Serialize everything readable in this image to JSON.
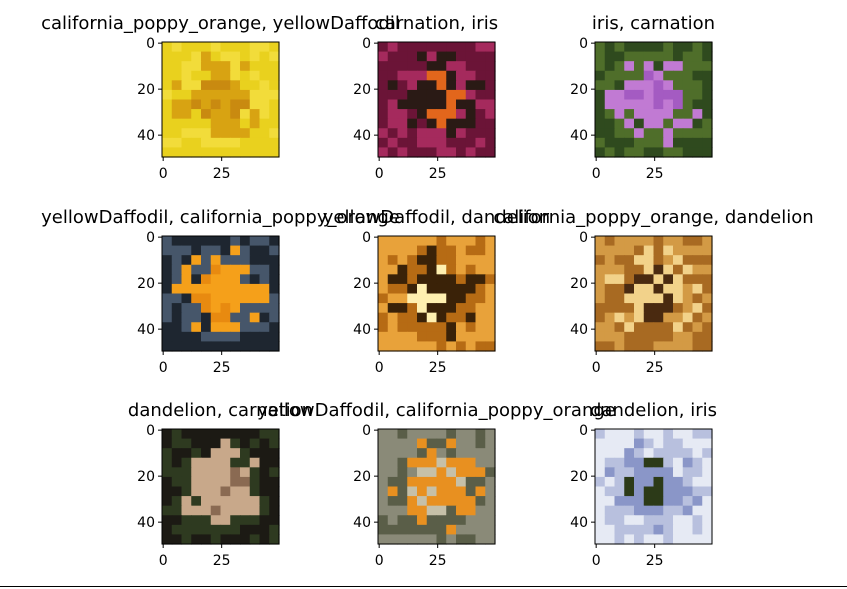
{
  "chart_data": [
    {
      "type": "image",
      "title": "california_poppy_orange, yellowDaffodil",
      "xticks": [
        0,
        25
      ],
      "yticks": [
        0,
        20,
        40
      ],
      "xlim": [
        -0.5,
        49.5
      ],
      "ylim": [
        49.5,
        -0.5
      ],
      "image_content": "yellow daffodil flower close-up",
      "palette": [
        "#e9d11e",
        "#f2dc3a",
        "#d8a312",
        "#c98a10"
      ]
    },
    {
      "type": "image",
      "title": "carnation, iris",
      "xticks": [
        0,
        25
      ],
      "yticks": [
        0,
        20,
        40
      ],
      "xlim": [
        -0.5,
        49.5
      ],
      "ylim": [
        49.5,
        -0.5
      ],
      "image_content": "dark magenta iris with orange beard",
      "palette": [
        "#6b1437",
        "#a52a5d",
        "#2a1a15",
        "#e2661c"
      ]
    },
    {
      "type": "image",
      "title": "iris, carnation",
      "xticks": [
        0,
        25
      ],
      "yticks": [
        0,
        20,
        40
      ],
      "xlim": [
        -0.5,
        49.5
      ],
      "ylim": [
        49.5,
        -0.5
      ],
      "image_content": "violet carnation on green background",
      "palette": [
        "#2f4a1e",
        "#4f6e2a",
        "#c17ad3",
        "#a45bc2"
      ]
    },
    {
      "type": "image",
      "title": "yellowDaffodil, california_poppy_orange",
      "xticks": [
        0,
        25
      ],
      "yticks": [
        0,
        20,
        40
      ],
      "xlim": [
        -0.5,
        49.5
      ],
      "ylim": [
        49.5,
        -0.5
      ],
      "image_content": "orange poppy among blue-grey foliage",
      "palette": [
        "#1e2630",
        "#46566a",
        "#f5a01a",
        "#e88a10"
      ]
    },
    {
      "type": "image",
      "title": "yellowDaffodil, dandelion",
      "xticks": [
        0,
        25
      ],
      "yticks": [
        0,
        20,
        40
      ],
      "xlim": [
        -0.5,
        49.5
      ],
      "ylim": [
        49.5,
        -0.5
      ],
      "image_content": "dandelion seed head backlit at sunset",
      "palette": [
        "#e8a23a",
        "#b66b14",
        "#3a2208",
        "#fff0b0"
      ]
    },
    {
      "type": "image",
      "title": "california_poppy_orange, dandelion",
      "xticks": [
        0,
        25
      ],
      "yticks": [
        0,
        20,
        40
      ],
      "xlim": [
        -0.5,
        49.5
      ],
      "ylim": [
        49.5,
        -0.5
      ],
      "image_content": "dandelion seed head on golden background",
      "palette": [
        "#d39a45",
        "#a86a22",
        "#f2d28a",
        "#4a2a10"
      ]
    },
    {
      "type": "image",
      "title": "dandelion, carnation",
      "xticks": [
        0,
        25
      ],
      "yticks": [
        0,
        20,
        40
      ],
      "xlim": [
        -0.5,
        49.5
      ],
      "ylim": [
        49.5,
        -0.5
      ],
      "image_content": "pale dried flower heads on dark background",
      "palette": [
        "#1c1a14",
        "#2e3a20",
        "#c8a88a",
        "#8a6a52"
      ]
    },
    {
      "type": "image",
      "title": "yellowDaffodil, california_poppy_orange",
      "xticks": [
        0,
        25
      ],
      "yticks": [
        0,
        20,
        40
      ],
      "xlim": [
        -0.5,
        49.5
      ],
      "ylim": [
        49.5,
        -0.5
      ],
      "image_content": "field of orange poppies with grey-green leaves",
      "palette": [
        "#8a8a78",
        "#5a5e48",
        "#e89020",
        "#c6c0a8"
      ]
    },
    {
      "type": "image",
      "title": "dandelion, iris",
      "xticks": [
        0,
        25
      ],
      "yticks": [
        0,
        20,
        40
      ],
      "xlim": [
        -0.5,
        49.5
      ],
      "ylim": [
        49.5,
        -0.5
      ],
      "image_content": "pale blue-white iris petals",
      "palette": [
        "#e6eaf4",
        "#b8c0de",
        "#8a96c8",
        "#2c3a18"
      ]
    }
  ]
}
